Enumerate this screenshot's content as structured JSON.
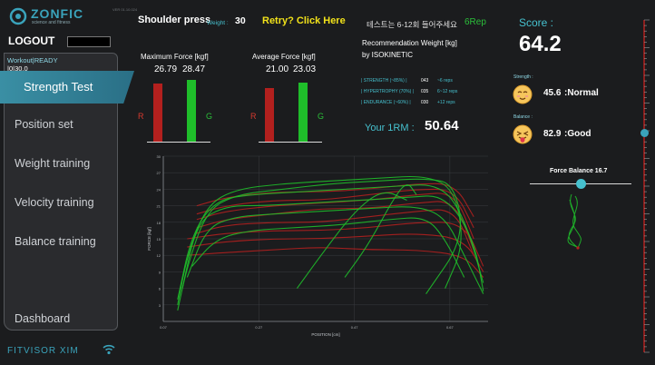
{
  "app": {
    "logo_text": "ZONFIC",
    "logo_tagline": "science and fitness",
    "version_text": "VER 01.10.024",
    "footer_logo": "FITVISOR XIM"
  },
  "account": {
    "logout_label": "LOGOUT",
    "workout_status": "Workout|READY",
    "workout_timer": "|0|30.0"
  },
  "nav": {
    "items": [
      "Strength Test",
      "Position set",
      "Weight training",
      "Velocity training",
      "Balance training",
      "Dashboard"
    ]
  },
  "header": {
    "exercise": "Shoulder press",
    "weight_label": "Weight :",
    "weight_value": "30",
    "retry_label": "Retry? Click Here",
    "notice_korean": "테스트는 6-12회 들어주세요",
    "notice_rep": "6Rep"
  },
  "max_force": {
    "title": "Maximum Force [kgf]",
    "left_value": "26.79",
    "right_value": "28.47",
    "left_label": "R",
    "right_label": "G",
    "left_level": 0.94,
    "right_level": 1.0
  },
  "avg_force": {
    "title": "Average Force [kgf]",
    "left_value": "21.00",
    "right_value": "23.03",
    "left_label": "R",
    "right_label": "G",
    "left_level": 0.91,
    "right_level": 1.0
  },
  "recommendation": {
    "title_line1": "Recommendation Weight [kg]",
    "title_line2": "by ISOKINETIC",
    "rows": [
      {
        "label": "| STRENGTH (~85%) |",
        "value": "043",
        "reps": "~6 reps"
      },
      {
        "label": "| HYPERTROPHY (70%) |",
        "value": "035",
        "reps": "6~12 reps"
      },
      {
        "label": "| ENDURANCE (~60%) |",
        "value": "030",
        "reps": "+12 reps"
      }
    ],
    "irm_label": "Your 1RM :",
    "irm_value": "50.64"
  },
  "score": {
    "label": "Score :",
    "value": "64.2",
    "strength_label": "Strength :",
    "strength_value": "45.6",
    "strength_grade": ":Normal",
    "balance_label": "Balance :",
    "balance_value": "82.9",
    "balance_grade": ":Good"
  },
  "force_balance": {
    "label": "Force Balance 16.7",
    "slider_level": 0.5
  },
  "scale": {
    "level": 0.34
  },
  "colors": {
    "accent": "#3a8fa4",
    "red": "#b3201e",
    "green": "#1fbe2a",
    "retry": "#f2e21a",
    "notice_rep": "#2bbf3a",
    "teal": "#46c1cf"
  },
  "chart_data": {
    "type": "line",
    "xlabel": "POSITION [cm]",
    "ylabel": "FORCE [kgf]",
    "x_ticks": [
      "0.07",
      "0.27",
      "0.47",
      "0.67"
    ],
    "y_ticks": [
      "30",
      "27",
      "24",
      "21",
      "18",
      "15",
      "12",
      "9",
      "6",
      "3"
    ],
    "xlim": [
      0.07,
      0.75
    ],
    "ylim": [
      0,
      30
    ],
    "series": [
      {
        "color": "red",
        "x": [
          0.14,
          0.2,
          0.3,
          0.4,
          0.5,
          0.6,
          0.68,
          0.72
        ],
        "y": [
          21.0,
          22.5,
          23.5,
          23.5,
          24.0,
          25.0,
          25.0,
          19.0
        ]
      },
      {
        "color": "red",
        "x": [
          0.14,
          0.2,
          0.3,
          0.4,
          0.5,
          0.6,
          0.68,
          0.72
        ],
        "y": [
          19.5,
          21.0,
          22.0,
          22.0,
          23.0,
          24.0,
          24.0,
          17.0
        ]
      },
      {
        "color": "red",
        "x": [
          0.14,
          0.2,
          0.3,
          0.4,
          0.5,
          0.6,
          0.68,
          0.72
        ],
        "y": [
          18.5,
          20.0,
          21.0,
          21.5,
          22.0,
          23.0,
          23.5,
          15.0
        ]
      },
      {
        "color": "red",
        "x": [
          0.14,
          0.2,
          0.3,
          0.4,
          0.5,
          0.6,
          0.68,
          0.72
        ],
        "y": [
          17.0,
          18.5,
          19.5,
          20.5,
          20.5,
          21.5,
          22.0,
          13.0
        ]
      },
      {
        "color": "red",
        "x": [
          0.14,
          0.2,
          0.3,
          0.4,
          0.5,
          0.6,
          0.68,
          0.72
        ],
        "y": [
          16.0,
          17.5,
          18.0,
          18.0,
          19.0,
          20.0,
          20.5,
          12.0
        ]
      },
      {
        "color": "red",
        "x": [
          0.12,
          0.2,
          0.3,
          0.4,
          0.5,
          0.6,
          0.7,
          0.74
        ],
        "y": [
          15.0,
          16.0,
          16.5,
          16.5,
          17.0,
          18.0,
          18.0,
          10.0
        ]
      },
      {
        "color": "red",
        "x": [
          0.12,
          0.2,
          0.3,
          0.4,
          0.5,
          0.6,
          0.7,
          0.74
        ],
        "y": [
          13.5,
          14.5,
          15.0,
          15.0,
          15.5,
          16.0,
          15.0,
          9.0
        ]
      },
      {
        "color": "red",
        "x": [
          0.12,
          0.2,
          0.3,
          0.4,
          0.5,
          0.6,
          0.7,
          0.74
        ],
        "y": [
          12.0,
          12.5,
          13.0,
          13.5,
          13.0,
          13.0,
          12.0,
          8.0
        ]
      },
      {
        "color": "green",
        "x": [
          0.1,
          0.12,
          0.16,
          0.22,
          0.32,
          0.42,
          0.52,
          0.62,
          0.68,
          0.7,
          0.62
        ],
        "y": [
          2.0,
          10.0,
          20.0,
          23.0,
          24.0,
          25.0,
          25.5,
          26.0,
          25.0,
          15.0,
          5.0
        ]
      },
      {
        "color": "green",
        "x": [
          0.1,
          0.12,
          0.16,
          0.22,
          0.32,
          0.42,
          0.52,
          0.62,
          0.68,
          0.7,
          0.66
        ],
        "y": [
          3.0,
          12.0,
          21.0,
          24.0,
          25.0,
          25.5,
          26.0,
          26.5,
          24.0,
          14.0,
          6.0
        ]
      },
      {
        "color": "green",
        "x": [
          0.1,
          0.13,
          0.18,
          0.25,
          0.35,
          0.45,
          0.55,
          0.65,
          0.7,
          0.74
        ],
        "y": [
          4.0,
          16.0,
          22.0,
          23.0,
          23.5,
          24.0,
          24.5,
          25.0,
          19.0,
          7.0
        ]
      },
      {
        "color": "green",
        "x": [
          0.11,
          0.14,
          0.2,
          0.28,
          0.38,
          0.48,
          0.58,
          0.66,
          0.72,
          0.74
        ],
        "y": [
          6.0,
          18.0,
          21.0,
          21.0,
          21.5,
          22.0,
          22.5,
          23.0,
          15.0,
          5.5
        ]
      },
      {
        "color": "green",
        "x": [
          0.12,
          0.16,
          0.22,
          0.3,
          0.4,
          0.5,
          0.6,
          0.66,
          0.7,
          0.74
        ],
        "y": [
          8.0,
          17.0,
          19.0,
          19.5,
          20.0,
          20.5,
          21.0,
          19.0,
          12.0,
          5.0
        ]
      },
      {
        "color": "green",
        "x": [
          0.13,
          0.18,
          0.25,
          0.34,
          0.44,
          0.54,
          0.62,
          0.66,
          0.7
        ],
        "y": [
          10.0,
          15.0,
          16.5,
          17.0,
          17.5,
          18.5,
          19.0,
          15.0,
          8.0
        ]
      },
      {
        "color": "green",
        "x": [
          0.35,
          0.4,
          0.47,
          0.53,
          0.58
        ],
        "y": [
          6.0,
          12.0,
          20.0,
          24.0,
          22.0
        ]
      },
      {
        "color": "green",
        "x": [
          0.45,
          0.5,
          0.55,
          0.58,
          0.6
        ],
        "y": [
          8.0,
          14.0,
          22.0,
          25.5,
          23.0
        ]
      }
    ]
  }
}
